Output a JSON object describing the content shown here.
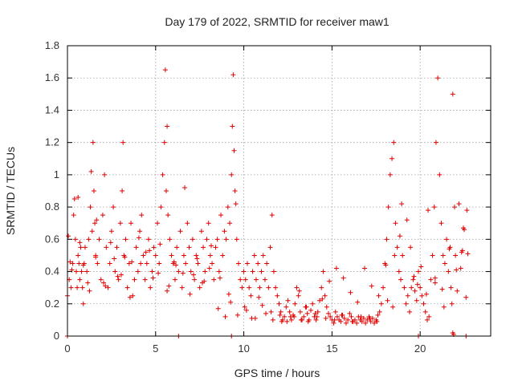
{
  "chart_data": {
    "type": "scatter",
    "title": "Day 179 of 2022, SRMTID for receiver maw1",
    "xlabel": "GPS time / hours",
    "ylabel": "SRMTID / TECUs",
    "xlim": [
      0,
      24
    ],
    "ylim": [
      0,
      1.8
    ],
    "xticks": [
      0,
      5,
      10,
      15,
      20
    ],
    "xtick_labels": [
      "0",
      "5",
      "10",
      "15",
      "20"
    ],
    "yticks": [
      0,
      0.2,
      0.4,
      0.6,
      0.8,
      1,
      1.2,
      1.4,
      1.6,
      1.8
    ],
    "ytick_labels": [
      "0",
      "0.2",
      "0.4",
      "0.6",
      "0.8",
      "1",
      "1.2",
      "1.4",
      "1.6",
      "1.8"
    ],
    "grid": true,
    "marker": "plus",
    "color": "#e00000",
    "series": [
      {
        "name": "SRMTID",
        "x": [
          0.0,
          0.1,
          0.2,
          0.3,
          0.35,
          0.4,
          0.45,
          0.5,
          0.55,
          0.6,
          0.65,
          0.7,
          0.75,
          0.8,
          0.85,
          0.9,
          0.95,
          1.0,
          1.1,
          1.2,
          1.3,
          1.35,
          1.4,
          1.45,
          1.5,
          1.55,
          1.6,
          1.7,
          1.8,
          1.9,
          2.0,
          2.1,
          2.2,
          2.3,
          2.4,
          2.5,
          2.6,
          2.7,
          2.8,
          2.9,
          3.0,
          3.1,
          3.15,
          3.2,
          3.3,
          3.4,
          3.5,
          3.6,
          3.7,
          3.8,
          3.9,
          4.0,
          4.1,
          4.2,
          4.3,
          4.4,
          4.5,
          4.6,
          4.7,
          4.8,
          4.9,
          5.0,
          5.1,
          5.2,
          5.3,
          5.4,
          5.5,
          5.55,
          5.6,
          5.65,
          5.7,
          5.8,
          5.9,
          6.0,
          6.1,
          6.2,
          6.3,
          6.4,
          6.5,
          6.6,
          6.7,
          6.8,
          6.9,
          7.0,
          7.1,
          7.2,
          7.3,
          7.4,
          7.5,
          7.6,
          7.7,
          7.8,
          7.9,
          8.0,
          8.1,
          8.2,
          8.3,
          8.4,
          8.5,
          8.6,
          8.7,
          8.8,
          8.9,
          9.0,
          9.1,
          9.2,
          9.3,
          9.35,
          9.4,
          9.45,
          9.5,
          9.6,
          9.7,
          9.8,
          9.9,
          10.0,
          10.1,
          10.2,
          10.3,
          10.4,
          10.5,
          10.6,
          10.7,
          10.8,
          10.9,
          11.0,
          11.1,
          11.2,
          11.3,
          11.4,
          11.5,
          11.6,
          11.7,
          11.8,
          11.9,
          12.0,
          12.1,
          12.2,
          12.3,
          12.4,
          12.5,
          12.6,
          12.7,
          12.8,
          12.9,
          13.0,
          13.1,
          13.2,
          13.3,
          13.4,
          13.5,
          13.6,
          13.7,
          13.8,
          13.9,
          14.0,
          14.1,
          14.2,
          14.3,
          14.4,
          14.5,
          14.6,
          14.7,
          14.8,
          14.9,
          15.0,
          15.1,
          15.2,
          15.3,
          15.4,
          15.5,
          15.6,
          15.7,
          15.8,
          15.9,
          16.0,
          16.1,
          16.2,
          16.3,
          16.4,
          16.5,
          16.6,
          16.7,
          16.8,
          16.9,
          17.0,
          17.1,
          17.2,
          17.3,
          17.4,
          17.5,
          17.6,
          17.7,
          17.8,
          17.9,
          18.0,
          18.1,
          18.2,
          18.3,
          18.4,
          18.5,
          18.6,
          18.7,
          18.8,
          18.9,
          19.0,
          19.1,
          19.2,
          19.3,
          19.4,
          19.5,
          19.6,
          19.7,
          19.8,
          19.9,
          20.0,
          20.1,
          20.2,
          20.3,
          20.4,
          20.5,
          20.6,
          20.7,
          20.8,
          20.9,
          21.0,
          21.1,
          21.2,
          21.3,
          21.4,
          21.5,
          21.6,
          21.7,
          21.75,
          21.8,
          21.85,
          21.9,
          21.95,
          22.0,
          22.1,
          22.2,
          22.3,
          22.4,
          22.5,
          22.6,
          22.7,
          0.05,
          0.25,
          0.6,
          0.9,
          1.25,
          1.65,
          2.05,
          2.45,
          2.85,
          3.25,
          3.65,
          4.05,
          4.45,
          4.85,
          5.25,
          5.75,
          6.15,
          6.55,
          6.95,
          7.35,
          7.75,
          8.15,
          8.55,
          8.95,
          9.25,
          9.65,
          10.05,
          10.45,
          10.85,
          11.25,
          11.65,
          12.05,
          12.45,
          12.85,
          13.25,
          13.65,
          14.05,
          14.45,
          14.85,
          15.25,
          15.65,
          16.05,
          16.45,
          16.85,
          17.25,
          17.65,
          18.05,
          18.45,
          18.85,
          19.25,
          19.65,
          20.05,
          20.45,
          20.85,
          21.25,
          21.65,
          22.05,
          22.45,
          0.15,
          0.7,
          1.15,
          1.6,
          2.15,
          2.65,
          3.05,
          3.55,
          4.15,
          4.65,
          5.15,
          5.65,
          6.05,
          6.65,
          7.15,
          7.65,
          8.05,
          8.65,
          9.15,
          9.55,
          10.15,
          10.65,
          11.05,
          11.55,
          12.15,
          12.65,
          13.15,
          13.55,
          14.15,
          14.65,
          15.15,
          15.55,
          16.15,
          16.65,
          17.15,
          17.55,
          18.15,
          18.55,
          18.95,
          19.45,
          19.85,
          20.35,
          20.85,
          21.35,
          21.85,
          22.35,
          22.65,
          0.0,
          6.3,
          9.3,
          19.9,
          22.6
        ],
        "y": [
          0.25,
          0.35,
          0.3,
          0.45,
          0.75,
          0.85,
          0.6,
          0.4,
          0.3,
          0.5,
          0.45,
          0.35,
          0.55,
          0.4,
          0.3,
          0.2,
          0.45,
          0.55,
          0.4,
          0.6,
          0.8,
          1.02,
          0.65,
          1.2,
          0.9,
          0.7,
          0.5,
          0.45,
          0.6,
          0.35,
          0.75,
          1.0,
          0.55,
          0.3,
          0.45,
          0.65,
          0.8,
          0.4,
          0.55,
          0.35,
          0.7,
          0.9,
          1.2,
          0.5,
          0.6,
          0.3,
          0.45,
          0.7,
          0.25,
          0.35,
          0.55,
          0.4,
          0.65,
          0.75,
          0.5,
          0.35,
          0.45,
          0.6,
          0.3,
          0.4,
          0.55,
          0.5,
          0.7,
          0.45,
          0.8,
          1.0,
          1.2,
          1.65,
          0.9,
          1.3,
          0.75,
          0.6,
          0.5,
          0.45,
          0.35,
          0.55,
          0.4,
          0.65,
          0.3,
          0.5,
          0.45,
          0.7,
          0.55,
          0.4,
          0.6,
          0.35,
          0.5,
          0.45,
          0.3,
          0.65,
          0.55,
          0.4,
          0.6,
          0.7,
          0.5,
          0.45,
          0.35,
          0.55,
          0.6,
          0.4,
          0.75,
          0.5,
          0.65,
          0.6,
          0.8,
          0.7,
          1.0,
          1.3,
          1.62,
          1.15,
          0.9,
          0.6,
          0.45,
          0.35,
          0.3,
          0.4,
          0.35,
          0.45,
          0.3,
          0.25,
          0.4,
          0.5,
          0.35,
          0.45,
          0.3,
          0.4,
          0.5,
          0.35,
          0.45,
          0.3,
          0.55,
          0.75,
          0.4,
          0.3,
          0.25,
          0.2,
          0.15,
          0.1,
          0.12,
          0.18,
          0.22,
          0.15,
          0.1,
          0.13,
          0.2,
          0.3,
          0.25,
          0.15,
          0.1,
          0.12,
          0.18,
          0.14,
          0.1,
          0.16,
          0.2,
          0.12,
          0.1,
          0.15,
          0.22,
          0.3,
          0.4,
          0.25,
          0.18,
          0.14,
          0.12,
          0.1,
          0.08,
          0.15,
          0.12,
          0.1,
          0.09,
          0.13,
          0.11,
          0.08,
          0.1,
          0.14,
          0.12,
          0.09,
          0.1,
          0.08,
          0.12,
          0.1,
          0.09,
          0.11,
          0.08,
          0.1,
          0.12,
          0.09,
          0.11,
          0.08,
          0.1,
          0.13,
          0.15,
          0.2,
          0.3,
          0.45,
          0.6,
          0.8,
          1.0,
          1.1,
          1.2,
          0.7,
          0.55,
          0.4,
          0.35,
          0.5,
          0.3,
          0.2,
          0.25,
          0.15,
          0.3,
          0.35,
          0.28,
          0.22,
          0.4,
          0.3,
          0.25,
          0.2,
          0.15,
          0.1,
          0.12,
          0.35,
          0.5,
          0.8,
          1.2,
          1.6,
          1.0,
          0.7,
          0.5,
          0.45,
          0.6,
          0.4,
          0.55,
          0.3,
          0.2,
          0.02,
          0.01,
          0.8,
          0.5,
          0.28,
          0.82,
          0.42,
          0.53,
          0.66,
          0.24,
          0.51,
          0.62,
          0.41,
          0.86,
          0.44,
          0.28,
          0.72,
          0.33,
          0.58,
          0.37,
          0.49,
          0.46,
          0.61,
          0.52,
          0.36,
          0.57,
          0.31,
          0.44,
          0.39,
          0.26,
          0.48,
          0.34,
          0.56,
          0.17,
          0.12,
          0.21,
          0.13,
          0.18,
          0.11,
          0.24,
          0.14,
          0.1,
          0.13,
          0.09,
          0.12,
          0.1,
          0.09,
          0.14,
          0.23,
          0.34,
          0.42,
          0.36,
          0.27,
          0.21,
          0.42,
          0.31,
          0.25,
          0.44,
          0.18,
          0.62,
          0.72,
          0.37,
          0.43,
          0.78,
          0.36,
          0.29,
          0.54,
          0.41,
          0.67,
          0.46,
          0.58,
          0.33,
          0.49,
          0.31,
          0.48,
          0.38,
          0.24,
          0.45,
          0.53,
          0.39,
          0.28,
          0.46,
          0.92,
          0.38,
          0.33,
          0.42,
          0.36,
          0.26,
          0.82,
          0.16,
          0.11,
          0.19,
          0.15,
          0.09,
          0.12,
          0.28,
          0.18,
          0.12,
          0.11,
          0.1,
          0.13,
          0.09,
          0.12,
          0.11,
          0.09,
          0.22,
          0.5,
          0.82,
          0.55,
          0.32,
          0.26,
          0.33,
          0.18,
          1.5,
          0.52,
          0.78,
          0.0,
          0.0,
          0.0,
          0.0,
          0.0
        ]
      }
    ]
  }
}
